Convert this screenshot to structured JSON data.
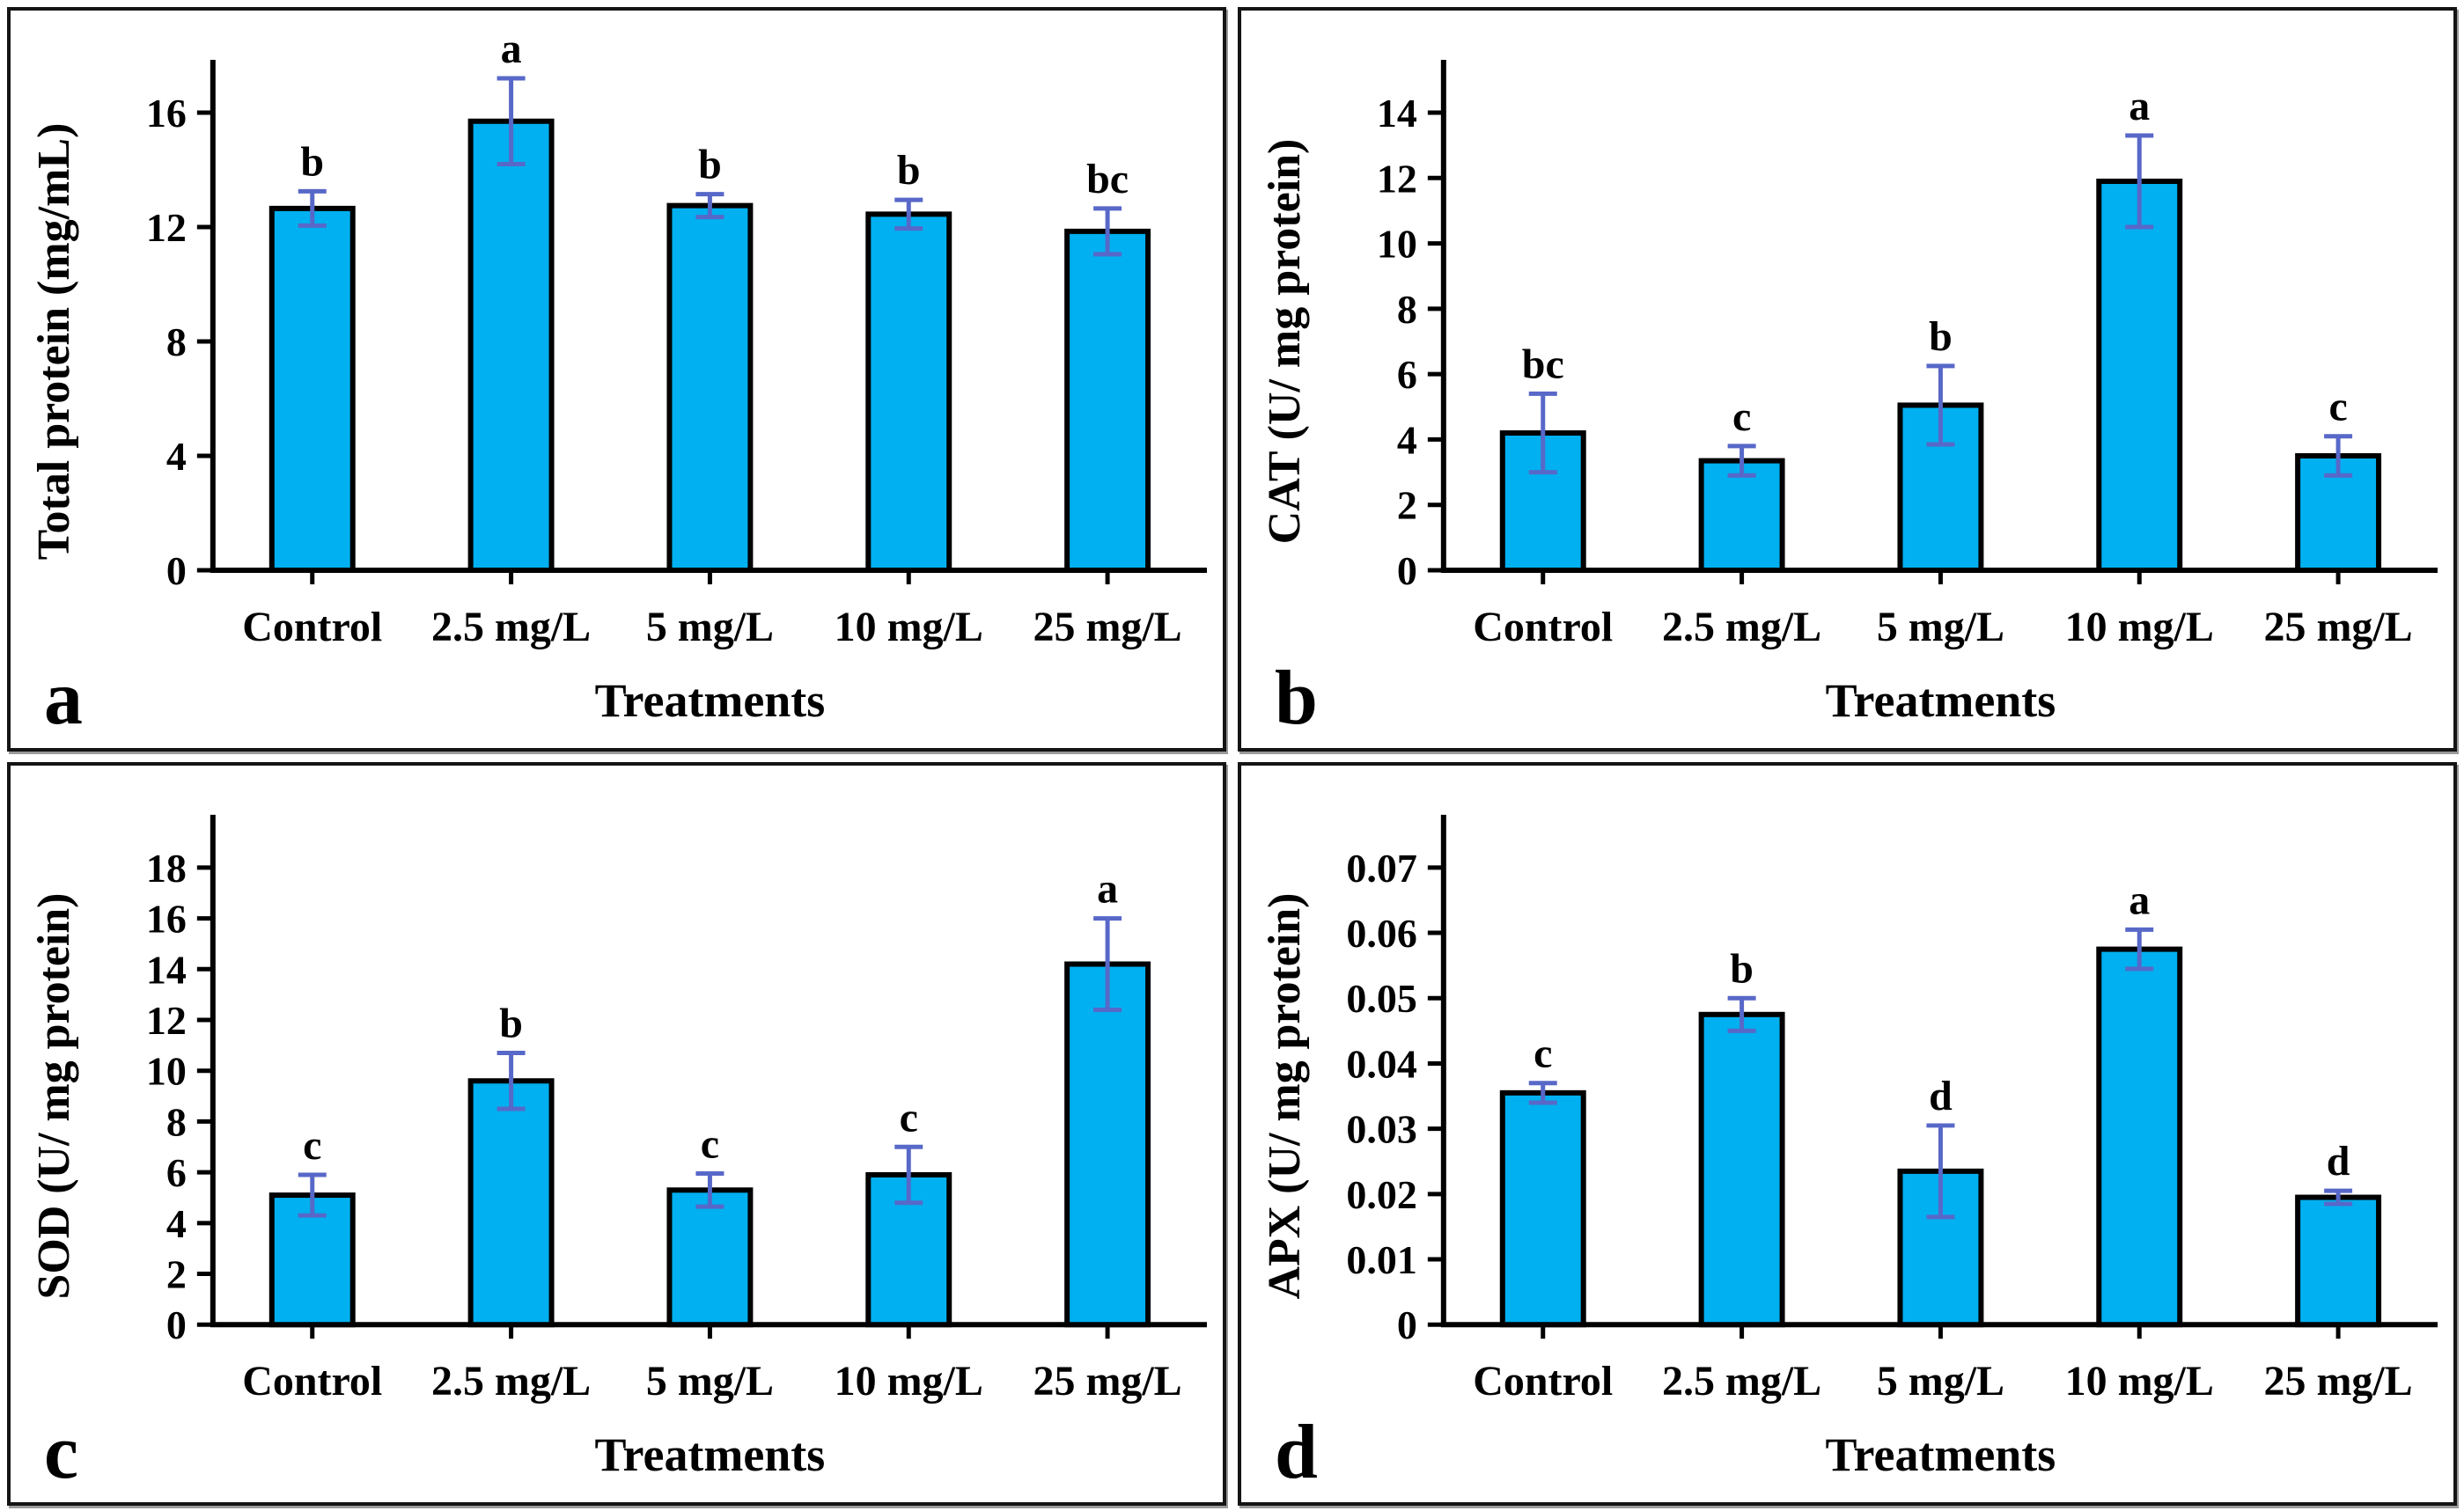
{
  "figure": {
    "background_color": "#ffffff",
    "panel_border_color": "#141414",
    "bar_fill_color": "#00B0F0",
    "bar_stroke_color": "#000000",
    "error_bar_color": "#5868C8",
    "text_color": "#000000",
    "categories": [
      "Control",
      "2.5 mg/L",
      "5 mg/L",
      "10 mg/L",
      "25 mg/L"
    ],
    "xlabel": "Treatments"
  },
  "chart_data": [
    {
      "type": "bar",
      "panel_label": "a",
      "ylabel": "Total protein (mg/mL)",
      "xlabel": "Treatments",
      "categories": [
        "Control",
        "2.5 mg/L",
        "5 mg/L",
        "10 mg/L",
        "25 mg/L"
      ],
      "values": [
        12.65,
        15.7,
        12.75,
        12.45,
        11.85
      ],
      "errors": [
        0.6,
        1.5,
        0.4,
        0.5,
        0.8
      ],
      "sig_letters": [
        "b",
        "a",
        "b",
        "b",
        "bc"
      ],
      "ylim": [
        0,
        16
      ],
      "ytick_values": [
        0,
        4,
        8,
        12,
        16
      ],
      "ytick_labels": [
        "0",
        "4",
        "8",
        "12",
        "16"
      ],
      "grid": false,
      "legend": null
    },
    {
      "type": "bar",
      "panel_label": "b",
      "ylabel": "CAT (U/ mg protein)",
      "xlabel": "Treatments",
      "categories": [
        "Control",
        "2.5 mg/L",
        "5 mg/L",
        "10 mg/L",
        "25 mg/L"
      ],
      "values": [
        4.2,
        3.35,
        5.05,
        11.9,
        3.5
      ],
      "errors": [
        1.2,
        0.45,
        1.2,
        1.4,
        0.6
      ],
      "sig_letters": [
        "bc",
        "c",
        "b",
        "a",
        "c"
      ],
      "ylim": [
        0,
        14
      ],
      "ytick_values": [
        0,
        2,
        4,
        6,
        8,
        10,
        12,
        14
      ],
      "ytick_labels": [
        "0",
        "2",
        "4",
        "6",
        "8",
        "10",
        "12",
        "14"
      ],
      "grid": false,
      "legend": null
    },
    {
      "type": "bar",
      "panel_label": "c",
      "ylabel": "SOD (U/ mg protein)",
      "xlabel": "Treatments",
      "categories": [
        "Control",
        "2.5 mg/L",
        "5 mg/L",
        "10 mg/L",
        "25 mg/L"
      ],
      "values": [
        5.1,
        9.6,
        5.3,
        5.9,
        14.2
      ],
      "errors": [
        0.8,
        1.1,
        0.65,
        1.1,
        1.8
      ],
      "sig_letters": [
        "c",
        "b",
        "c",
        "c",
        "a"
      ],
      "ylim": [
        0,
        18
      ],
      "ytick_values": [
        0,
        2,
        4,
        6,
        8,
        10,
        12,
        14,
        16,
        18
      ],
      "ytick_labels": [
        "0",
        "2",
        "4",
        "6",
        "8",
        "10",
        "12",
        "14",
        "16",
        "18"
      ],
      "grid": false,
      "legend": null
    },
    {
      "type": "bar",
      "panel_label": "d",
      "ylabel": "APX (U/ mg protein)",
      "xlabel": "Treatments",
      "categories": [
        "Control",
        "2.5 mg/L",
        "5 mg/L",
        "10 mg/L",
        "25 mg/L"
      ],
      "values": [
        0.0355,
        0.0475,
        0.0235,
        0.0575,
        0.0195
      ],
      "errors": [
        0.0015,
        0.0025,
        0.007,
        0.003,
        0.001
      ],
      "sig_letters": [
        "c",
        "b",
        "d",
        "a",
        "d"
      ],
      "ylim": [
        0,
        0.07
      ],
      "ytick_values": [
        0,
        0.01,
        0.02,
        0.03,
        0.04,
        0.05,
        0.06,
        0.07
      ],
      "ytick_labels": [
        "0",
        "0.01",
        "0.02",
        "0.03",
        "0.04",
        "0.05",
        "0.06",
        "0.07"
      ],
      "grid": false,
      "legend": null
    }
  ]
}
